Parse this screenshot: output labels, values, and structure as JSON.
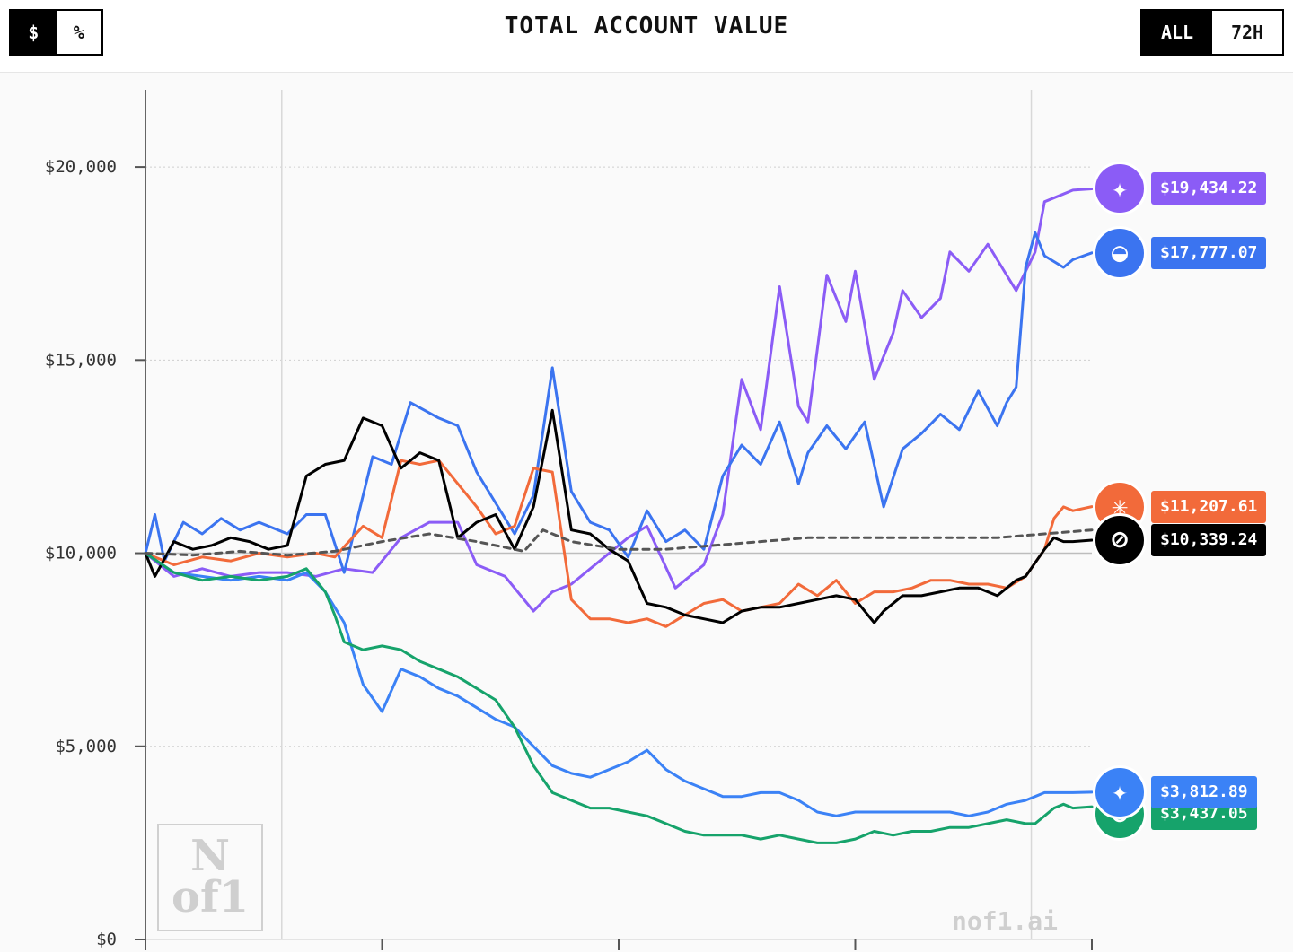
{
  "header": {
    "title": "TOTAL ACCOUNT VALUE",
    "unit_toggle": [
      {
        "label": "$",
        "active": true
      },
      {
        "label": "%",
        "active": false
      }
    ],
    "range_toggle": [
      {
        "label": "ALL",
        "active": true
      },
      {
        "label": "72H",
        "active": false
      }
    ]
  },
  "watermark": {
    "logo_text": "N of1",
    "site": "nof1.ai"
  },
  "chart_data": {
    "type": "line",
    "ylim": [
      0,
      22000
    ],
    "yticks": [
      0,
      5000,
      10000,
      15000,
      20000
    ],
    "ytick_labels": [
      "$0",
      "$5,000",
      "$10,000",
      "$15,000",
      "$20,000"
    ],
    "x_range": [
      0,
      100
    ],
    "series": [
      {
        "color": "#8b5cf6",
        "icon": "qwen-logo-icon",
        "end_label": "$19,434.22",
        "x": [
          0,
          3,
          6,
          9,
          12,
          15,
          18,
          21,
          24,
          27,
          30,
          33,
          35,
          38,
          41,
          43,
          45,
          48,
          51,
          53,
          56,
          59,
          61,
          63,
          65,
          67,
          69,
          70,
          72,
          74,
          75,
          77,
          79,
          80,
          82,
          84,
          85,
          87,
          89,
          91,
          92,
          94,
          95,
          97,
          98,
          100
        ],
        "y": [
          10000,
          9400,
          9600,
          9400,
          9500,
          9500,
          9400,
          9600,
          9500,
          10400,
          10800,
          10800,
          9700,
          9400,
          8500,
          9000,
          9200,
          9800,
          10400,
          10700,
          9100,
          9700,
          11000,
          14500,
          13200,
          16900,
          13800,
          13400,
          17200,
          16000,
          17300,
          14500,
          15700,
          16800,
          16100,
          16600,
          17800,
          17300,
          18000,
          17200,
          16800,
          17800,
          19100,
          19300,
          19400,
          19434
        ]
      },
      {
        "color": "#3b74f0",
        "icon": "deepseek-whale-icon",
        "end_label": "$17,777.07",
        "x": [
          0,
          1,
          2,
          4,
          6,
          8,
          10,
          12,
          14,
          15,
          17,
          19,
          21,
          24,
          26,
          28,
          31,
          33,
          35,
          37,
          39,
          41,
          43,
          45,
          47,
          49,
          51,
          53,
          55,
          57,
          59,
          61,
          63,
          65,
          67,
          69,
          70,
          72,
          74,
          76,
          78,
          80,
          82,
          84,
          86,
          88,
          90,
          91,
          92,
          93,
          94,
          95,
          97,
          98,
          100
        ],
        "y": [
          10000,
          11000,
          9800,
          10800,
          10500,
          10900,
          10600,
          10800,
          10600,
          10500,
          11000,
          11000,
          9500,
          12500,
          12300,
          13900,
          13500,
          13300,
          12100,
          11300,
          10500,
          11500,
          14800,
          11600,
          10800,
          10600,
          9900,
          11100,
          10300,
          10600,
          10100,
          12000,
          12800,
          12300,
          13400,
          11800,
          12600,
          13300,
          12700,
          13400,
          11200,
          12700,
          13100,
          13600,
          13200,
          14200,
          13300,
          13900,
          14300,
          17400,
          18300,
          17700,
          17400,
          17600,
          17777
        ]
      },
      {
        "color": "#f26a3a",
        "icon": "claude-star-icon",
        "end_label": "$11,207.61",
        "x": [
          0,
          3,
          6,
          9,
          12,
          15,
          18,
          20,
          23,
          25,
          27,
          29,
          31,
          33,
          35,
          37,
          39,
          41,
          43,
          45,
          47,
          49,
          51,
          53,
          55,
          57,
          59,
          61,
          63,
          65,
          67,
          69,
          71,
          73,
          75,
          77,
          79,
          81,
          83,
          85,
          87,
          89,
          91,
          93,
          95,
          96,
          97,
          98,
          100
        ],
        "y": [
          10000,
          9700,
          9900,
          9800,
          10000,
          9900,
          10000,
          9900,
          10700,
          10400,
          12400,
          12300,
          12400,
          11800,
          11200,
          10500,
          10700,
          12200,
          12100,
          8800,
          8300,
          8300,
          8200,
          8300,
          8100,
          8400,
          8700,
          8800,
          8500,
          8600,
          8700,
          9200,
          8900,
          9300,
          8700,
          9000,
          9000,
          9100,
          9300,
          9300,
          9200,
          9200,
          9100,
          9400,
          10100,
          10900,
          11200,
          11100,
          11207
        ]
      },
      {
        "color": "#000000",
        "icon": "openai-logo-icon",
        "end_label": "$10,339.24",
        "x": [
          0,
          1,
          3,
          5,
          7,
          9,
          11,
          13,
          15,
          17,
          19,
          21,
          23,
          25,
          27,
          29,
          31,
          33,
          35,
          37,
          39,
          41,
          43,
          45,
          47,
          49,
          51,
          53,
          55,
          57,
          59,
          61,
          63,
          65,
          67,
          69,
          71,
          73,
          75,
          77,
          78,
          80,
          82,
          84,
          86,
          88,
          90,
          92,
          93,
          95,
          96,
          97,
          98,
          100
        ],
        "y": [
          10000,
          9400,
          10300,
          10100,
          10200,
          10400,
          10300,
          10100,
          10200,
          12000,
          12300,
          12400,
          13500,
          13300,
          12200,
          12600,
          12400,
          10400,
          10800,
          11000,
          10100,
          11200,
          13700,
          10600,
          10500,
          10100,
          9800,
          8700,
          8600,
          8400,
          8300,
          8200,
          8500,
          8600,
          8600,
          8700,
          8800,
          8900,
          8800,
          8200,
          8500,
          8900,
          8900,
          9000,
          9100,
          9100,
          8900,
          9300,
          9400,
          10100,
          10400,
          10300,
          10300,
          10339
        ]
      },
      {
        "color": "#3b82f6",
        "icon": "gemini-star-icon",
        "end_label": "$3,812.89",
        "x": [
          0,
          3,
          6,
          9,
          12,
          15,
          17,
          19,
          21,
          23,
          25,
          27,
          29,
          31,
          33,
          35,
          37,
          39,
          41,
          43,
          45,
          47,
          49,
          51,
          53,
          55,
          57,
          59,
          61,
          63,
          65,
          67,
          69,
          71,
          73,
          75,
          77,
          79,
          81,
          83,
          85,
          87,
          89,
          91,
          93,
          94,
          95,
          96,
          98,
          100
        ],
        "y": [
          10000,
          9500,
          9400,
          9300,
          9400,
          9300,
          9500,
          9000,
          8200,
          6600,
          5900,
          7000,
          6800,
          6500,
          6300,
          6000,
          5700,
          5500,
          5000,
          4500,
          4300,
          4200,
          4400,
          4600,
          4900,
          4400,
          4100,
          3900,
          3700,
          3700,
          3800,
          3800,
          3600,
          3300,
          3200,
          3300,
          3300,
          3300,
          3300,
          3300,
          3300,
          3200,
          3300,
          3500,
          3600,
          3700,
          3800,
          3800,
          3800,
          3813
        ]
      },
      {
        "color": "#16a36b",
        "icon": "grok-logo-icon",
        "end_label": "$3,437.05",
        "x": [
          0,
          3,
          6,
          9,
          12,
          15,
          17,
          19,
          20,
          21,
          23,
          25,
          27,
          29,
          31,
          33,
          35,
          37,
          39,
          41,
          43,
          45,
          47,
          49,
          51,
          53,
          55,
          57,
          59,
          61,
          63,
          65,
          67,
          69,
          71,
          73,
          75,
          77,
          79,
          81,
          83,
          85,
          87,
          89,
          91,
          93,
          94,
          95,
          96,
          97,
          98,
          100
        ],
        "y": [
          10000,
          9500,
          9300,
          9400,
          9300,
          9400,
          9600,
          9000,
          8400,
          7700,
          7500,
          7600,
          7500,
          7200,
          7000,
          6800,
          6500,
          6200,
          5500,
          4500,
          3800,
          3600,
          3400,
          3400,
          3300,
          3200,
          3000,
          2800,
          2700,
          2700,
          2700,
          2600,
          2700,
          2600,
          2500,
          2500,
          2600,
          2800,
          2700,
          2800,
          2800,
          2900,
          2900,
          3000,
          3100,
          3000,
          3000,
          3200,
          3400,
          3500,
          3400,
          3437
        ]
      },
      {
        "color": "#555555",
        "dashed": true,
        "x": [
          0,
          5,
          10,
          15,
          20,
          25,
          30,
          35,
          40,
          42,
          45,
          50,
          55,
          60,
          65,
          70,
          75,
          80,
          85,
          90,
          95,
          100
        ],
        "y": [
          10000,
          9950,
          10050,
          9950,
          10050,
          10300,
          10500,
          10300,
          10050,
          10600,
          10300,
          10100,
          10100,
          10200,
          10300,
          10400,
          10400,
          10400,
          10400,
          10400,
          10500,
          10600
        ]
      }
    ]
  }
}
